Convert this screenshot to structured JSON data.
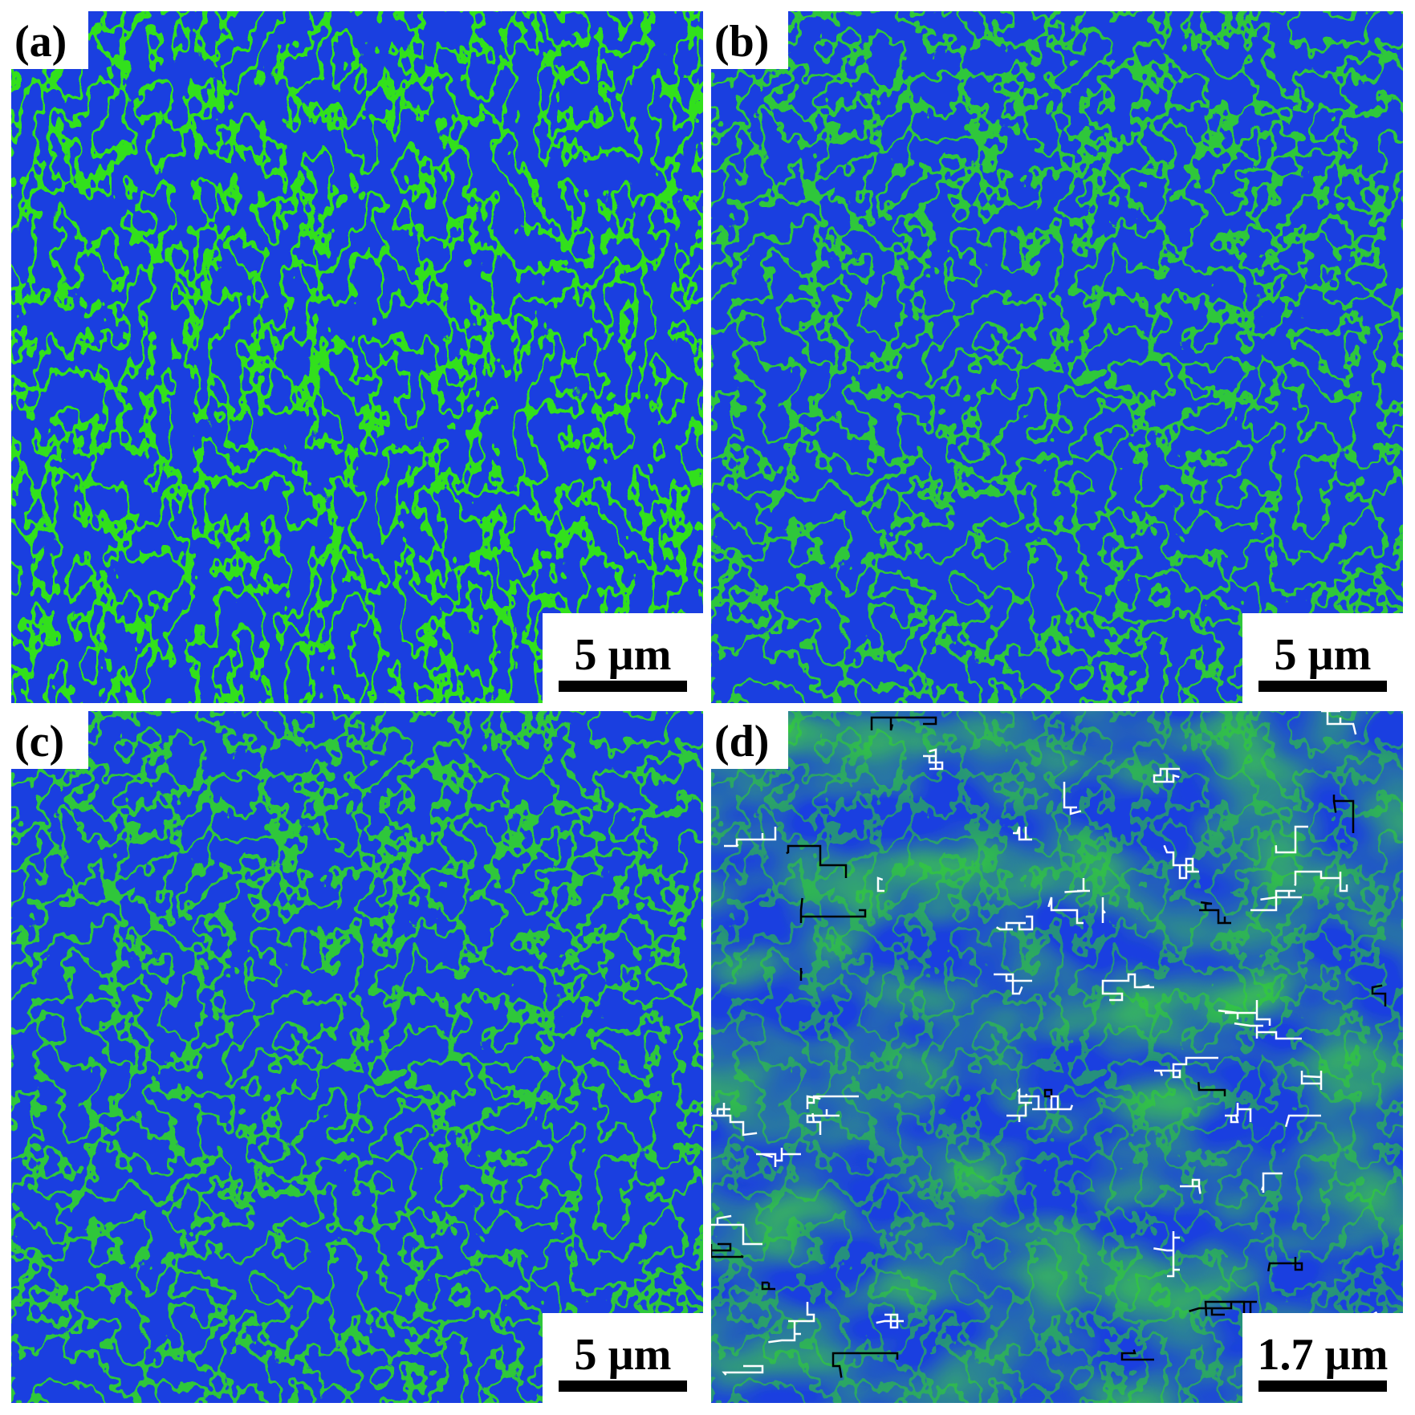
{
  "panels": [
    {
      "label": "(a)",
      "scale_bar": "5 µm"
    },
    {
      "label": "(b)",
      "scale_bar": "5 µm"
    },
    {
      "label": "(c)",
      "scale_bar": "5 µm"
    },
    {
      "label": "(d)",
      "scale_bar": "1.7 µm"
    }
  ]
}
